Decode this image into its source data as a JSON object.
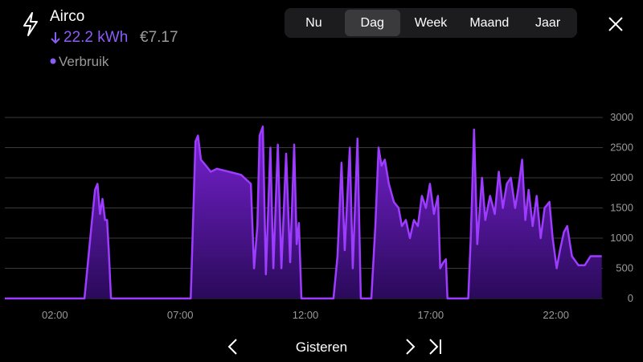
{
  "header": {
    "title": "Airco",
    "energy": "22.2 kWh",
    "cost": "€7.17"
  },
  "tabs": [
    "Nu",
    "Dag",
    "Week",
    "Maand",
    "Jaar"
  ],
  "active_tab": 1,
  "nav": {
    "label": "Gisteren"
  },
  "chart_data": {
    "type": "area",
    "xlim": [
      0,
      24
    ],
    "xticks": [
      {
        "value": 2,
        "label": "02:00"
      },
      {
        "value": 7,
        "label": "07:00"
      },
      {
        "value": 12,
        "label": "12:00"
      },
      {
        "value": 17,
        "label": "17:00"
      },
      {
        "value": 22,
        "label": "22:00"
      }
    ],
    "ylim": [
      0,
      3000
    ],
    "yticks": [
      0,
      500,
      1000,
      1500,
      2000,
      2500,
      3000
    ],
    "grid": true,
    "x": [
      0,
      3.18,
      3.41,
      3.6,
      3.7,
      3.8,
      3.9,
      4.0,
      4.08,
      4.15,
      4.24,
      7.42,
      7.61,
      7.71,
      7.83,
      8.03,
      8.22,
      8.47,
      8.95,
      9.43,
      9.82,
      9.95,
      10.08,
      10.17,
      10.3,
      10.42,
      10.6,
      10.72,
      10.9,
      11.04,
      11.23,
      11.39,
      11.55,
      11.65,
      11.74,
      11.84,
      13.12,
      13.28,
      13.44,
      13.57,
      13.77,
      13.89,
      14.08,
      14.21,
      14.63,
      14.79,
      14.92,
      15.04,
      15.17,
      15.33,
      15.53,
      15.72,
      15.85,
      16.01,
      16.17,
      16.33,
      16.49,
      16.65,
      16.81,
      16.97,
      17.13,
      17.29,
      17.38,
      17.51,
      17.61,
      17.67,
      18.5,
      18.6,
      18.73,
      18.86,
      19.05,
      19.18,
      19.37,
      19.56,
      19.72,
      19.88,
      20.04,
      20.2,
      20.37,
      20.49,
      20.65,
      20.78,
      20.91,
      21.07,
      21.23,
      21.39,
      21.55,
      21.74,
      21.87,
      22.03,
      22.16,
      22.32,
      22.45,
      22.64,
      22.9,
      23.15,
      23.38,
      23.83
    ],
    "series": [
      {
        "name": "Verbruik",
        "color": "#9d3cff",
        "values": [
          0,
          0,
          1000,
          1800,
          1900,
          1400,
          1650,
          1300,
          1300,
          800,
          0,
          0,
          2600,
          2700,
          2300,
          2200,
          2100,
          2150,
          2100,
          2050,
          1900,
          500,
          1200,
          2700,
          2850,
          400,
          2500,
          500,
          2550,
          500,
          2400,
          600,
          2550,
          900,
          1250,
          0,
          0,
          700,
          2250,
          800,
          2500,
          500,
          2650,
          0,
          0,
          1200,
          2500,
          2200,
          2300,
          1900,
          1600,
          1500,
          1200,
          1300,
          1000,
          1300,
          1200,
          1700,
          1500,
          1900,
          1400,
          1700,
          500,
          600,
          650,
          0,
          0,
          1000,
          2800,
          900,
          2000,
          1300,
          1700,
          1400,
          2100,
          1500,
          1900,
          2000,
          1500,
          1800,
          2300,
          1300,
          1800,
          1200,
          1700,
          1000,
          1500,
          1600,
          1000,
          500,
          800,
          1100,
          1200,
          700,
          550,
          550,
          700,
          700
        ]
      }
    ]
  }
}
